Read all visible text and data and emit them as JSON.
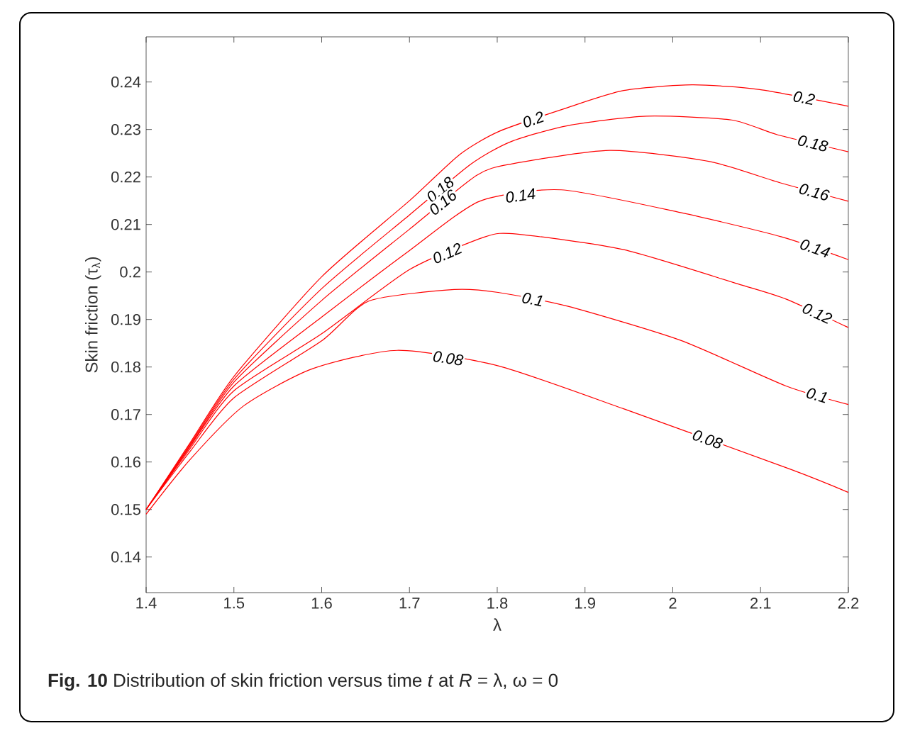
{
  "chart_data": {
    "type": "line",
    "xlabel": "λ",
    "ylabel": "Skin friction (τ$_{λ}$)",
    "xlim": [
      1.4,
      2.2
    ],
    "ylim": [
      0.1325,
      0.2495
    ],
    "xticks": [
      1.4,
      1.5,
      1.6,
      1.7,
      1.8,
      1.9,
      2,
      2.1,
      2.2
    ],
    "yticks": [
      0.14,
      0.15,
      0.16,
      0.17,
      0.18,
      0.19,
      0.2,
      0.21,
      0.22,
      0.23,
      0.24
    ],
    "grid": false,
    "legend": false,
    "marker": "none",
    "line_style": "solid",
    "annotations": [
      "**Fig. 10** Distribution of skin friction versus time *t* at *R* = λ, ω = 0"
    ],
    "series": [
      {
        "name": "0.2",
        "color": "#ff0000",
        "x": [
          1.4,
          1.45,
          1.5,
          1.6,
          1.7,
          1.757,
          1.802,
          1.88,
          1.944,
          2.022,
          2.099,
          2.2
        ],
        "values": [
          0.15,
          0.164,
          0.178,
          0.199,
          0.215,
          0.2247,
          0.2296,
          0.2346,
          0.2382,
          0.2394,
          0.2384,
          0.2349
        ]
      },
      {
        "name": "0.18",
        "color": "#ff0000",
        "x": [
          1.4,
          1.45,
          1.5,
          1.6,
          1.7,
          1.77,
          1.815,
          1.88,
          1.97,
          2.067,
          2.119,
          2.2
        ],
        "values": [
          0.15,
          0.1637,
          0.1774,
          0.1965,
          0.212,
          0.2227,
          0.2274,
          0.2308,
          0.2328,
          0.232,
          0.2289,
          0.2253
        ]
      },
      {
        "name": "0.16",
        "color": "#ff0000",
        "x": [
          1.4,
          1.45,
          1.5,
          1.6,
          1.7,
          1.776,
          1.815,
          1.928,
          2.041,
          2.122,
          2.2
        ],
        "values": [
          0.15,
          0.1634,
          0.1768,
          0.194,
          0.209,
          0.2203,
          0.2227,
          0.2256,
          0.2233,
          0.2188,
          0.2149
        ]
      },
      {
        "name": "0.14",
        "color": "#ff0000",
        "x": [
          1.4,
          1.45,
          1.5,
          1.6,
          1.7,
          1.78,
          1.873,
          2.009,
          2.124,
          2.2
        ],
        "values": [
          0.15,
          0.1632,
          0.176,
          0.1905,
          0.2045,
          0.2149,
          0.2173,
          0.2125,
          0.2074,
          0.2026
        ]
      },
      {
        "name": "0.12",
        "color": "#ff0000",
        "x": [
          1.4,
          1.45,
          1.5,
          1.6,
          1.7,
          1.786,
          1.822,
          1.944,
          2.074,
          2.129,
          2.2
        ],
        "values": [
          0.15,
          0.1628,
          0.175,
          0.187,
          0.2005,
          0.2074,
          0.208,
          0.2047,
          0.1975,
          0.1943,
          0.1883
        ]
      },
      {
        "name": "0.1",
        "color": "#ff0000",
        "x": [
          1.4,
          1.45,
          1.5,
          1.6,
          1.654,
          1.751,
          1.801,
          1.88,
          2.009,
          2.129,
          2.2
        ],
        "values": [
          0.15,
          0.1622,
          0.1735,
          0.1855,
          0.1939,
          0.1963,
          0.1957,
          0.1928,
          0.1856,
          0.176,
          0.1721
        ]
      },
      {
        "name": "0.08",
        "color": "#ff0000",
        "x": [
          1.4,
          1.45,
          1.511,
          1.589,
          1.686,
          1.802,
          1.944,
          2.135,
          2.2
        ],
        "values": [
          0.149,
          0.1605,
          0.1718,
          0.1796,
          0.1835,
          0.1802,
          0.1712,
          0.1584,
          0.1536
        ]
      }
    ]
  }
}
